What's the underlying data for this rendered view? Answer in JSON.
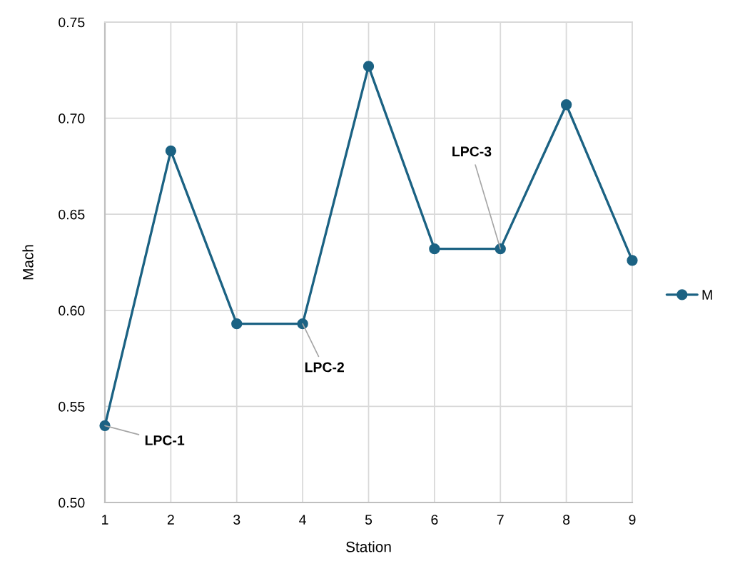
{
  "chart_data": {
    "type": "line",
    "xlabel": "Station",
    "ylabel": "Mach",
    "x": [
      1,
      2,
      3,
      4,
      5,
      6,
      7,
      8,
      9
    ],
    "xlim": [
      1,
      9
    ],
    "xticks": [
      1,
      2,
      3,
      4,
      5,
      6,
      7,
      8,
      9
    ],
    "ylim": [
      0.5,
      0.75
    ],
    "yticks": [
      {
        "value": 0.5,
        "label": "0.50"
      },
      0.55,
      {
        "value": 0.6,
        "label": "0.60"
      },
      0.65,
      {
        "value": 0.7,
        "label": "0.70"
      },
      0.75
    ],
    "series": [
      {
        "name": "M",
        "color": "#1b6283",
        "values": [
          0.54,
          0.683,
          0.593,
          0.593,
          0.727,
          0.632,
          0.632,
          0.707,
          0.626
        ]
      }
    ],
    "marker": "circle",
    "line_style": "solid",
    "grid": true,
    "legend": "right",
    "annotations": [
      {
        "text": "LPC-1",
        "x": 1,
        "y": 0.54
      },
      {
        "text": "LPC-2",
        "x": 4,
        "y": 0.593
      },
      {
        "text": "LPC-3",
        "x": 7,
        "y": 0.632
      }
    ]
  }
}
